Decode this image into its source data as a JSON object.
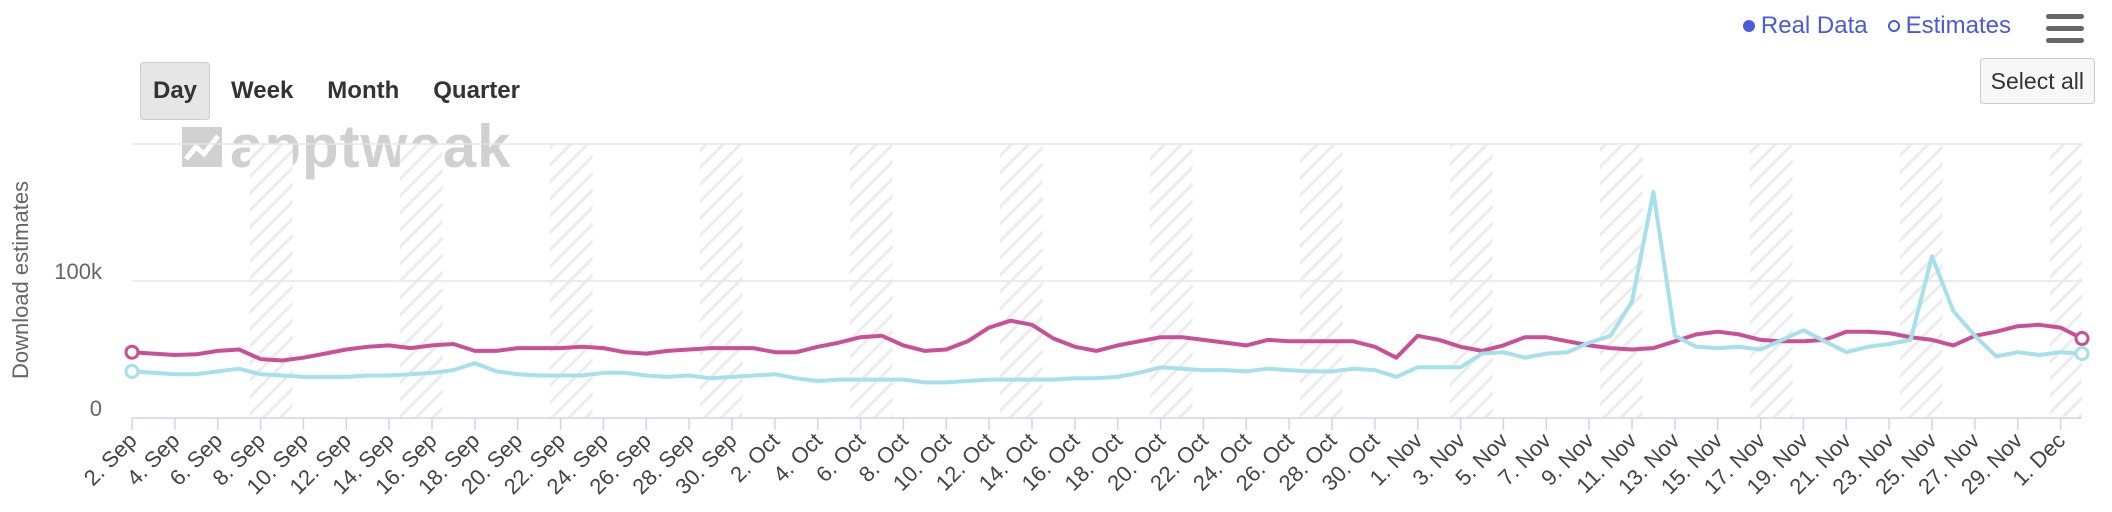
{
  "range_selector": {
    "buttons": [
      {
        "label": "Day",
        "active": true
      },
      {
        "label": "Week",
        "active": false
      },
      {
        "label": "Month",
        "active": false
      },
      {
        "label": "Quarter",
        "active": false
      }
    ]
  },
  "legend": {
    "real_data_label": "Real Data",
    "estimates_label": "Estimates",
    "color": "#4a5ad9"
  },
  "menu": {
    "icon": "hamburger-menu-icon"
  },
  "select_all_label": "Select all",
  "watermark": {
    "text": "apptweak"
  },
  "colors": {
    "series_1": "#c94f97",
    "series_2": "#a6e0ea",
    "weekend_band": "#ececec",
    "grid": "#e6e6e6"
  },
  "chart_data": {
    "type": "line",
    "ylabel": "Download estimates",
    "ylim": [
      0,
      200000
    ],
    "y_ticks": [
      0,
      100000
    ],
    "y_tick_labels": [
      "0",
      "100k"
    ],
    "grid": true,
    "legend_placement": "top-right",
    "x_labels": [
      "2. Sep",
      "4. Sep",
      "6. Sep",
      "8. Sep",
      "10. Sep",
      "12. Sep",
      "14. Sep",
      "16. Sep",
      "18. Sep",
      "20. Sep",
      "22. Sep",
      "24. Sep",
      "26. Sep",
      "28. Sep",
      "30. Sep",
      "2. Oct",
      "4. Oct",
      "6. Oct",
      "8. Oct",
      "10. Oct",
      "12. Oct",
      "14. Oct",
      "16. Oct",
      "18. Oct",
      "20. Oct",
      "22. Oct",
      "24. Oct",
      "26. Oct",
      "28. Oct",
      "30. Oct",
      "1. Nov",
      "3. Nov",
      "5. Nov",
      "7. Nov",
      "9. Nov",
      "11. Nov",
      "13. Nov",
      "15. Nov",
      "17. Nov",
      "19. Nov",
      "21. Nov",
      "23. Nov",
      "25. Nov",
      "27. Nov",
      "29. Nov",
      "1. Dec"
    ],
    "weekend_start_indices": [
      6,
      13,
      20,
      27,
      34,
      41,
      48,
      55,
      62,
      69,
      76,
      83,
      90
    ],
    "series": [
      {
        "color": "#c94f97",
        "values": [
          48000,
          47000,
          46000,
          46500,
          49000,
          50000,
          43000,
          42000,
          44000,
          47000,
          50000,
          52000,
          53000,
          51000,
          53000,
          54000,
          49000,
          49000,
          51000,
          51000,
          51000,
          52000,
          51000,
          48000,
          47000,
          49000,
          50000,
          51000,
          51000,
          51000,
          48000,
          48000,
          52000,
          55000,
          59000,
          60000,
          53000,
          49000,
          50000,
          56000,
          66000,
          71000,
          68000,
          58000,
          52000,
          49000,
          53000,
          56000,
          59000,
          59000,
          57000,
          55000,
          53000,
          57000,
          56000,
          56000,
          56000,
          56000,
          52000,
          44000,
          60000,
          57000,
          52000,
          49000,
          53000,
          59000,
          59000,
          56000,
          53000,
          51000,
          50000,
          51000,
          56000,
          61000,
          63000,
          61000,
          57000,
          56000,
          56000,
          57000,
          63000,
          63000,
          62000,
          59000,
          57000,
          53000,
          60000,
          63000,
          67000,
          68000,
          66000,
          58000
        ]
      },
      {
        "color": "#a6e0ea",
        "values": [
          34000,
          33000,
          32000,
          32000,
          34000,
          36000,
          32000,
          31000,
          30000,
          30000,
          30000,
          31000,
          31000,
          32000,
          33000,
          35000,
          40000,
          34000,
          32000,
          31000,
          31000,
          31000,
          33000,
          33000,
          31000,
          30000,
          31000,
          29000,
          30000,
          31000,
          32000,
          29000,
          27000,
          28000,
          28000,
          28000,
          28000,
          26000,
          26000,
          27000,
          28000,
          28000,
          28000,
          28000,
          29000,
          29000,
          30000,
          33000,
          37000,
          36000,
          35000,
          35000,
          34000,
          36000,
          35000,
          34000,
          34000,
          36000,
          35000,
          30000,
          37000,
          37000,
          37000,
          47000,
          48000,
          44000,
          47000,
          48000,
          55000,
          60000,
          85000,
          165000,
          60000,
          52000,
          51000,
          52000,
          50000,
          57000,
          64000,
          56000,
          48000,
          52000,
          54000,
          57000,
          118000,
          78000,
          60000,
          45000,
          48000,
          46000,
          48000,
          47000
        ]
      }
    ]
  }
}
